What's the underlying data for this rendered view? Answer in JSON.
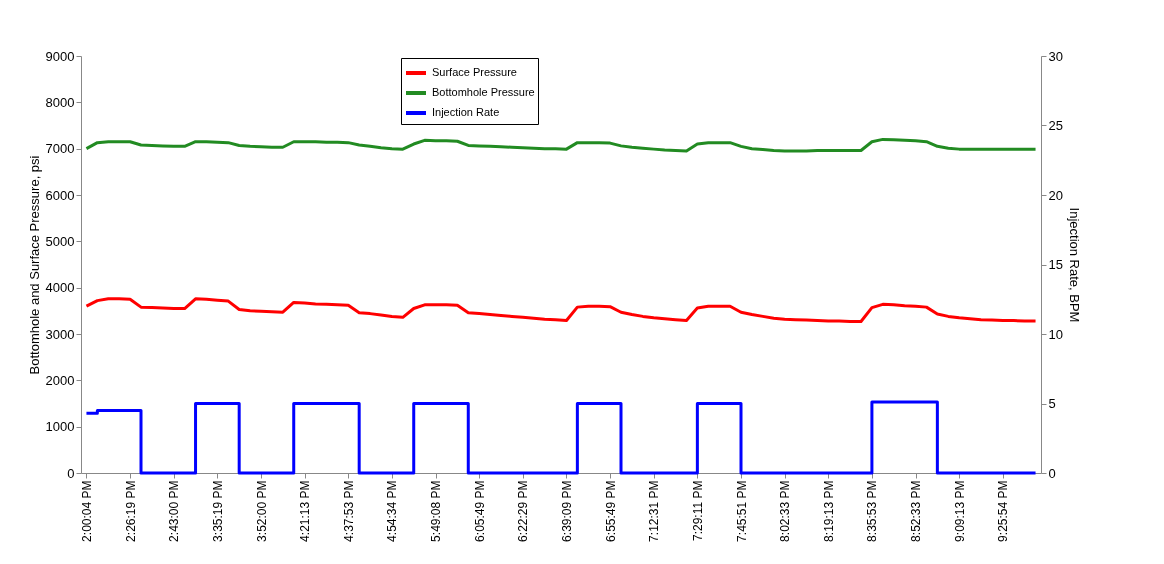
{
  "chart_data": {
    "type": "line",
    "ylabel": "Bottomhole and Surface Pressure, psi",
    "y2label": "Injection Rate, BPM",
    "categories": [
      "2:00:04 PM",
      null,
      null,
      null,
      "2:26:19 PM",
      null,
      null,
      null,
      "2:43:00 PM",
      null,
      null,
      null,
      "3:35:19 PM",
      null,
      null,
      null,
      "3:52:00 PM",
      null,
      null,
      null,
      "4:21:13 PM",
      null,
      null,
      null,
      "4:37:53 PM",
      null,
      null,
      null,
      "4:54:34 PM",
      null,
      null,
      null,
      "5:49:08 PM",
      null,
      null,
      null,
      "6:05:49 PM",
      null,
      null,
      null,
      "6:22:29 PM",
      null,
      null,
      null,
      "6:39:09 PM",
      null,
      null,
      null,
      "6:55:49 PM",
      null,
      null,
      null,
      "7:12:31 PM",
      null,
      null,
      null,
      "7:29:11 PM",
      null,
      null,
      null,
      "7:45:51 PM",
      null,
      null,
      null,
      "8:02:33 PM",
      null,
      null,
      null,
      "8:19:13 PM",
      null,
      null,
      null,
      "8:35:53 PM",
      null,
      null,
      null,
      "8:52:33 PM",
      null,
      null,
      null,
      "9:09:13 PM",
      null,
      null,
      null,
      "9:25:54 PM",
      null,
      null,
      null
    ],
    "series": [
      {
        "name": "Surface Pressure",
        "color": "#ff0000",
        "values": [
          3600,
          3720,
          3760,
          3760,
          3750,
          3580,
          3570,
          3560,
          3550,
          3550,
          3760,
          3750,
          3730,
          3710,
          3530,
          3500,
          3490,
          3480,
          3470,
          3680,
          3670,
          3650,
          3640,
          3630,
          3620,
          3460,
          3440,
          3410,
          3380,
          3360,
          3550,
          3630,
          3630,
          3630,
          3620,
          3460,
          3440,
          3420,
          3400,
          3380,
          3360,
          3340,
          3320,
          3310,
          3290,
          3580,
          3600,
          3600,
          3590,
          3470,
          3420,
          3380,
          3350,
          3330,
          3310,
          3290,
          3560,
          3600,
          3600,
          3600,
          3470,
          3420,
          3380,
          3340,
          3320,
          3310,
          3300,
          3290,
          3280,
          3280,
          3270,
          3270,
          3570,
          3640,
          3630,
          3610,
          3600,
          3580,
          3430,
          3380,
          3350,
          3330,
          3310,
          3300,
          3290,
          3290,
          3280,
          3280
        ]
      },
      {
        "name": "Bottomhole Pressure",
        "color": "#228b22",
        "values": [
          7000,
          7130,
          7150,
          7150,
          7150,
          7080,
          7070,
          7060,
          7050,
          7050,
          7150,
          7150,
          7140,
          7130,
          7070,
          7050,
          7040,
          7030,
          7030,
          7150,
          7150,
          7150,
          7140,
          7140,
          7130,
          7080,
          7050,
          7020,
          7000,
          6990,
          7100,
          7180,
          7170,
          7170,
          7160,
          7070,
          7060,
          7050,
          7040,
          7030,
          7020,
          7010,
          7000,
          7000,
          6990,
          7130,
          7130,
          7130,
          7120,
          7060,
          7030,
          7010,
          6990,
          6970,
          6960,
          6950,
          7100,
          7130,
          7130,
          7130,
          7050,
          7000,
          6980,
          6960,
          6950,
          6950,
          6950,
          6960,
          6960,
          6960,
          6960,
          6960,
          7150,
          7200,
          7190,
          7180,
          7170,
          7150,
          7050,
          7010,
          6990,
          6990,
          6990,
          6990,
          6990,
          6990,
          6990,
          6990
        ]
      },
      {
        "name": "Injection Rate",
        "color": "#0000ff",
        "type": "step",
        "axis": "y2",
        "values": [
          4.3,
          4.5,
          4.5,
          4.5,
          4.5,
          0,
          0,
          0,
          0,
          0,
          5,
          5,
          5,
          5,
          0,
          0,
          0,
          0,
          0,
          5,
          5,
          5,
          5,
          5,
          5,
          0,
          0,
          0,
          0,
          0,
          5,
          5,
          5,
          5,
          5,
          0,
          0,
          0,
          0,
          0,
          0,
          0,
          0,
          0,
          0,
          5,
          5,
          5,
          5,
          0,
          0,
          0,
          0,
          0,
          0,
          0,
          5,
          5,
          5,
          5,
          0,
          0,
          0,
          0,
          0,
          0,
          0,
          0,
          0,
          0,
          0,
          0,
          5.1,
          5.1,
          5.1,
          5.1,
          5.1,
          5.1,
          0,
          0,
          0,
          0,
          0,
          0,
          0,
          0,
          0,
          0
        ]
      }
    ],
    "ylim": [
      0,
      9000
    ],
    "yticks": [
      0,
      1000,
      2000,
      3000,
      4000,
      5000,
      6000,
      7000,
      8000,
      9000
    ],
    "y2lim": [
      0,
      30
    ],
    "y2ticks": [
      0,
      5,
      10,
      15,
      20,
      25,
      30
    ],
    "legend": "top",
    "grid": false
  }
}
